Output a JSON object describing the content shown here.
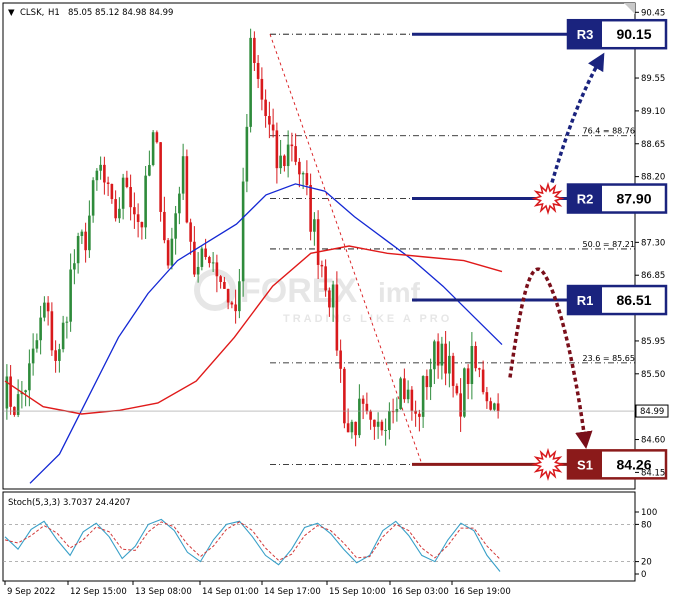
{
  "header": {
    "symbol_line": "CLSK,",
    "timeframe": "H1",
    "ohlc": "85.05 85.12 84.98 84.99",
    "collapse_arrow": "▼"
  },
  "price_axis": {
    "ticks": [
      "90.45",
      "89.55",
      "89.10",
      "88.65",
      "88.20",
      "87.30",
      "86.85",
      "85.95",
      "85.50",
      "84.60",
      "84.15"
    ],
    "current_price": "84.99"
  },
  "time_axis": {
    "labels": [
      "9 Sep 2022",
      "12 Sep 15:00",
      "13 Sep 08:00",
      "14 Sep 01:00",
      "14 Sep 17:00",
      "15 Sep 10:00",
      "16 Sep 03:00",
      "16 Sep 19:00"
    ]
  },
  "levels": [
    {
      "tag": "R3",
      "value": "90.15"
    },
    {
      "tag": "R2",
      "value": "87.90"
    },
    {
      "tag": "R1",
      "value": "86.51"
    },
    {
      "tag": "S1",
      "value": "84.26"
    }
  ],
  "fib_labels": [
    {
      "label": "76.4 = 88.76"
    },
    {
      "label": "50.0 = 87.21"
    },
    {
      "label": "23.6 = 85.65"
    }
  ],
  "stochastic": {
    "title": "Stoch(5,3,3) 3.7037 24.4207",
    "ticks": [
      "100",
      "80",
      "20",
      "0"
    ]
  },
  "watermark": {
    "brand_prefix": "FOREX",
    "brand_suffix": "imf",
    "tagline": "TRADING LIKE A PRO"
  },
  "colors": {
    "bull": "#2e8b3b",
    "bear": "#d8191c",
    "ma_fast": "#1428d4",
    "ma_slow": "#e01a1a",
    "resistance": "#1a237e",
    "support": "#8b1a1a",
    "stoch_main": "#39a0c8",
    "stoch_signal": "#d23a3a"
  },
  "chart_data": {
    "type": "candlestick",
    "title": "CLSK,H1",
    "y_range": [
      83.95,
      90.55
    ],
    "x": [
      "9 Sep 2022",
      "12 Sep 15:00",
      "13 Sep 08:00",
      "14 Sep 01:00",
      "14 Sep 17:00",
      "15 Sep 10:00",
      "16 Sep 03:00",
      "16 Sep 19:00"
    ],
    "price_series": [
      85.3,
      85.05,
      85.55,
      86.4,
      85.6,
      86.95,
      87.4,
      88.35,
      87.6,
      88.15,
      87.5,
      88.8,
      86.95,
      88.4,
      86.8,
      87.2,
      86.75,
      86.25,
      89.9,
      89.1,
      88.3,
      88.7,
      87.95,
      87.15,
      86.45,
      84.7,
      84.95,
      84.55,
      85.1,
      85.4,
      84.85,
      85.6,
      85.95,
      85.0,
      85.65,
      85.35,
      84.95
    ],
    "moving_averages": [
      {
        "color": "blue",
        "values": [
          84.0,
          84.4,
          85.2,
          86.0,
          86.6,
          87.05,
          87.3,
          87.55,
          87.95,
          88.1,
          88.0,
          87.65,
          87.35,
          87.05,
          86.7,
          86.3,
          85.9
        ]
      },
      {
        "color": "red",
        "values": [
          85.4,
          85.05,
          84.95,
          85.0,
          85.1,
          85.4,
          86.0,
          86.7,
          87.15,
          87.25,
          87.15,
          87.1,
          87.05,
          86.9
        ]
      }
    ],
    "levels": [
      {
        "name": "R3",
        "value": 90.15
      },
      {
        "name": "R2",
        "value": 87.9
      },
      {
        "name": "R1",
        "value": 86.51
      },
      {
        "name": "S1",
        "value": 84.26
      }
    ],
    "fibonacci": [
      {
        "ratio": 76.4,
        "value": 88.76
      },
      {
        "ratio": 50.0,
        "value": 87.21
      },
      {
        "ratio": 23.6,
        "value": 85.65
      }
    ],
    "current_price": 84.99,
    "stochastic": {
      "params": "5,3,3",
      "main": 3.7037,
      "signal": 24.4207,
      "levels": [
        80,
        20
      ],
      "y_range": [
        0,
        100
      ],
      "main_series": [
        60,
        40,
        72,
        85,
        55,
        30,
        68,
        82,
        60,
        25,
        45,
        80,
        88,
        70,
        35,
        20,
        55,
        80,
        85,
        60,
        30,
        15,
        40,
        75,
        82,
        65,
        40,
        18,
        30,
        70,
        85,
        62,
        30,
        20,
        55,
        82,
        70,
        30,
        4
      ],
      "signal_series": [
        55,
        50,
        62,
        78,
        66,
        42,
        55,
        76,
        68,
        40,
        38,
        68,
        84,
        76,
        48,
        28,
        45,
        72,
        84,
        70,
        42,
        22,
        32,
        62,
        78,
        70,
        50,
        26,
        28,
        60,
        80,
        70,
        42,
        26,
        46,
        74,
        74,
        45,
        24
      ]
    }
  }
}
